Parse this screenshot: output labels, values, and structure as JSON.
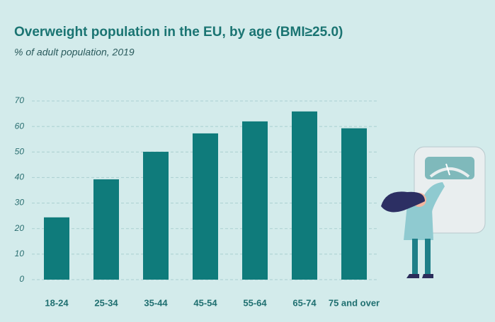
{
  "chart_data": {
    "type": "bar",
    "title": "Overweight population in the EU, by age (BMI≥25.0)",
    "subtitle": "% of adult population, 2019",
    "categories": [
      "18-24",
      "25-34",
      "35-44",
      "45-54",
      "55-64",
      "65-74",
      "75 and over"
    ],
    "values": [
      24.4,
      39.3,
      50.1,
      57.3,
      62.0,
      65.9,
      59.3
    ],
    "color": "#0f7b7b",
    "ylim": [
      0,
      70
    ],
    "yticks": [
      0,
      10,
      20,
      30,
      40,
      50,
      60,
      70
    ],
    "grid": true
  }
}
